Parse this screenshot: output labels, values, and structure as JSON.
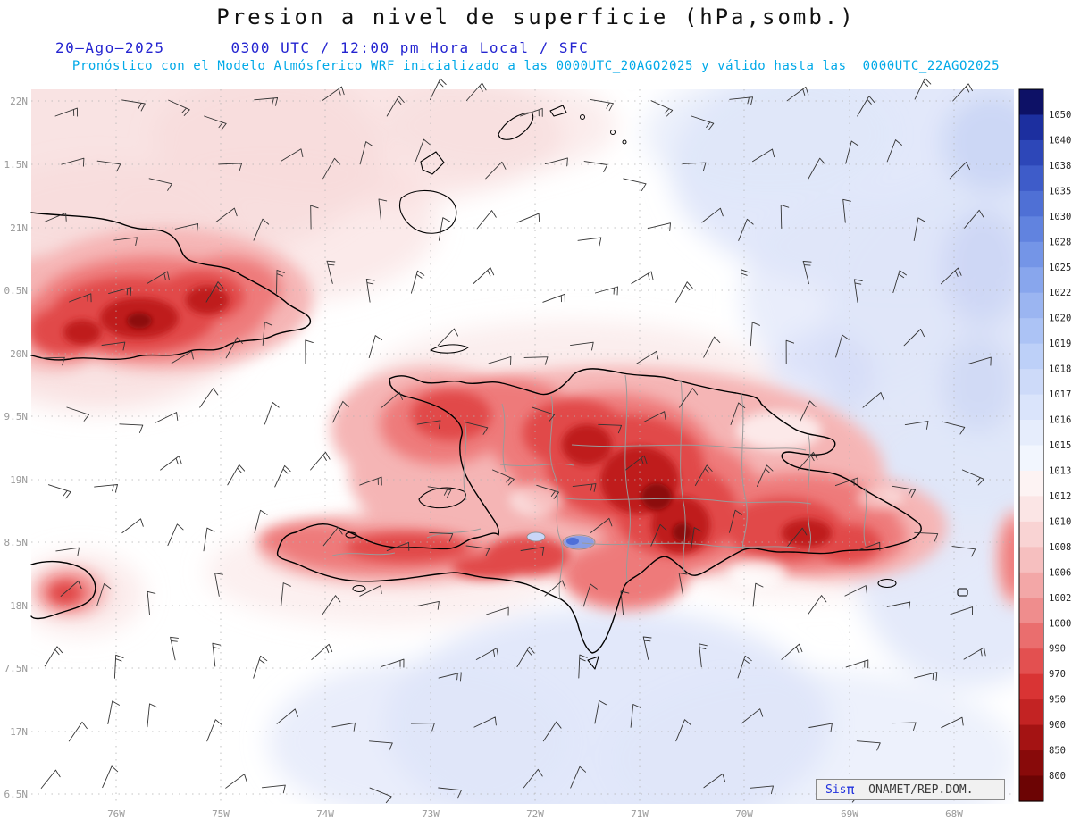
{
  "header": {
    "title": "Presion a nivel de superficie (hPa,somb.)",
    "date": "20—Ago—2025",
    "time_line": "0300 UTC / 12:00 pm Hora Local / SFC",
    "forecast_line": "Pronóstico con el Modelo Atmósferico WRF inicializado a las 0000UTC_20AGO2025 y válido hasta las  0000UTC_22AGO2025"
  },
  "axes": {
    "lat_labels": [
      "22N",
      "1.5N",
      "21N",
      "0.5N",
      "20N",
      "9.5N",
      "19N",
      "8.5N",
      "18N",
      "7.5N",
      "17N",
      "6.5N"
    ],
    "lon_labels": [
      "76W",
      "75W",
      "74W",
      "73W",
      "72W",
      "71W",
      "70W",
      "69W",
      "68W"
    ]
  },
  "colorbar": {
    "tick_labels": [
      "1050",
      "1040",
      "1038",
      "1035",
      "1030",
      "1028",
      "1025",
      "1022",
      "1020",
      "1019",
      "1018",
      "1017",
      "1016",
      "1015",
      "1013",
      "1012",
      "1010",
      "1008",
      "1006",
      "1002",
      "1000",
      "990",
      "970",
      "950",
      "900",
      "850",
      "800"
    ],
    "colors_top_to_bottom": [
      "#0d1166",
      "#1c2f9f",
      "#2d47b8",
      "#3e5cc9",
      "#4f70d5",
      "#6183df",
      "#7495e7",
      "#88a6ed",
      "#9bb5f1",
      "#acc3f5",
      "#bdd0f8",
      "#cddaf9",
      "#dae4fb",
      "#e6edfc",
      "#f2f6fe",
      "#fdf3f3",
      "#fbe5e5",
      "#f9d3d3",
      "#f6bfbf",
      "#f3a7a7",
      "#ef8d8d",
      "#ea6e6e",
      "#e35050",
      "#d93434",
      "#c32323",
      "#a41313",
      "#880a0a",
      "#6c0404"
    ]
  },
  "branding": {
    "product": "Sis",
    "pi": "π",
    "suffix": "— ONAMET/REP.DOM."
  },
  "colors": {
    "header_date_blue": "#2424d0",
    "header_forecast_cyan": "#00a9e8",
    "ocean_lavender": "#dfe6f9",
    "light_pink_field": "#f8dcdc",
    "strong_red_field": "#e14848"
  }
}
